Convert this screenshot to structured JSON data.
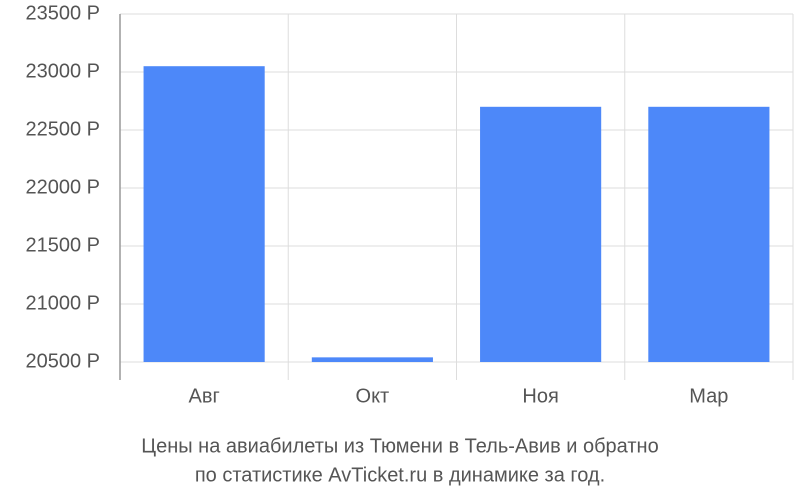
{
  "chart_data": {
    "type": "bar",
    "title": [
      "Цены на авиабилеты из Тюмени в Тель-Авив и обратно",
      "по статистике AvTicket.ru в динамике за год."
    ],
    "categories": [
      "Авг",
      "Окт",
      "Ноя",
      "Мар"
    ],
    "values": [
      23050,
      20540,
      22700,
      22700
    ],
    "color": "#4d88f9",
    "ylim": [
      20500,
      23500
    ],
    "yticks": [
      {
        "value": 20500,
        "label": "20500 Р"
      },
      {
        "value": 21000,
        "label": "21000 Р"
      },
      {
        "value": 21500,
        "label": "21500 Р"
      },
      {
        "value": 22000,
        "label": "22000 Р"
      },
      {
        "value": 22500,
        "label": "22500 Р"
      },
      {
        "value": 23000,
        "label": "23000 Р"
      },
      {
        "value": 23500,
        "label": "23500 Р"
      }
    ],
    "grid": true
  }
}
